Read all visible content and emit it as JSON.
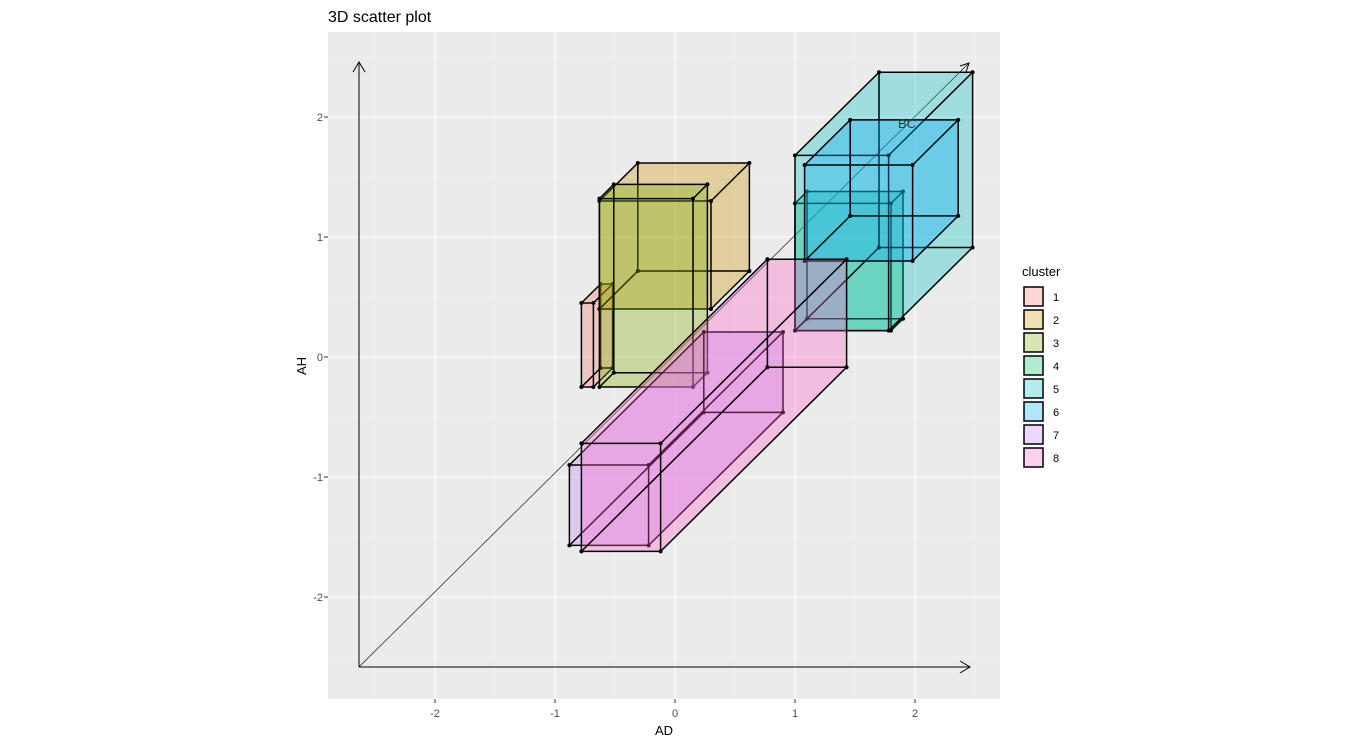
{
  "chart_data": {
    "type": "scatter",
    "title": "3D scatter plot",
    "xlabel": "AD",
    "ylabel": "AH",
    "xlim": [
      -2.9,
      2.7
    ],
    "ylim": [
      -2.85,
      2.7
    ],
    "x_ticks": [
      -2,
      -1,
      0,
      1,
      2
    ],
    "y_ticks": [
      -2,
      -1,
      0,
      1,
      2
    ],
    "grid": true,
    "legend_position": "right",
    "legend_title": "cluster",
    "depth_axis_label": "BC",
    "depth_axis_origin": [
      -2.65,
      -2.6
    ],
    "depth_axis_end": [
      2.45,
      2.45
    ],
    "depth_shift_per_unit": [
      1.0,
      0.99
    ],
    "series": [
      {
        "name": "1",
        "color": "#F8766D",
        "x_range": [
          -0.78,
          -0.68
        ],
        "y_range": [
          -0.25,
          0.45
        ],
        "depth_range": [
          0.0,
          0.16
        ]
      },
      {
        "name": "2",
        "color": "#CD9600",
        "x_range": [
          -0.63,
          0.3
        ],
        "y_range": [
          0.4,
          1.3
        ],
        "depth_range": [
          0.0,
          0.32
        ]
      },
      {
        "name": "3",
        "color": "#7CAE00",
        "x_range": [
          -0.63,
          0.15
        ],
        "y_range": [
          -0.25,
          1.32
        ],
        "depth_range": [
          0.0,
          0.12
        ]
      },
      {
        "name": "4",
        "color": "#00BE67",
        "x_range": [
          1.0,
          1.8
        ],
        "y_range": [
          0.22,
          1.28
        ],
        "depth_range": [
          0.0,
          0.1
        ]
      },
      {
        "name": "5",
        "color": "#00BFC4",
        "x_range": [
          1.0,
          1.78
        ],
        "y_range": [
          0.22,
          1.68
        ],
        "depth_range": [
          0.0,
          0.7
        ]
      },
      {
        "name": "6",
        "color": "#00A9FF",
        "x_range": [
          1.08,
          1.98
        ],
        "y_range": [
          0.8,
          1.6
        ],
        "depth_range": [
          0.0,
          0.38
        ]
      },
      {
        "name": "7",
        "color": "#C77CFF",
        "x_range": [
          -0.88,
          -0.22
        ],
        "y_range": [
          -1.57,
          -0.9
        ],
        "depth_range": [
          0.0,
          1.12
        ]
      },
      {
        "name": "8",
        "color": "#FF61CC",
        "x_range": [
          -0.78,
          -0.12
        ],
        "y_range": [
          -1.62,
          -0.72
        ],
        "depth_range": [
          0.0,
          1.55
        ]
      }
    ]
  }
}
